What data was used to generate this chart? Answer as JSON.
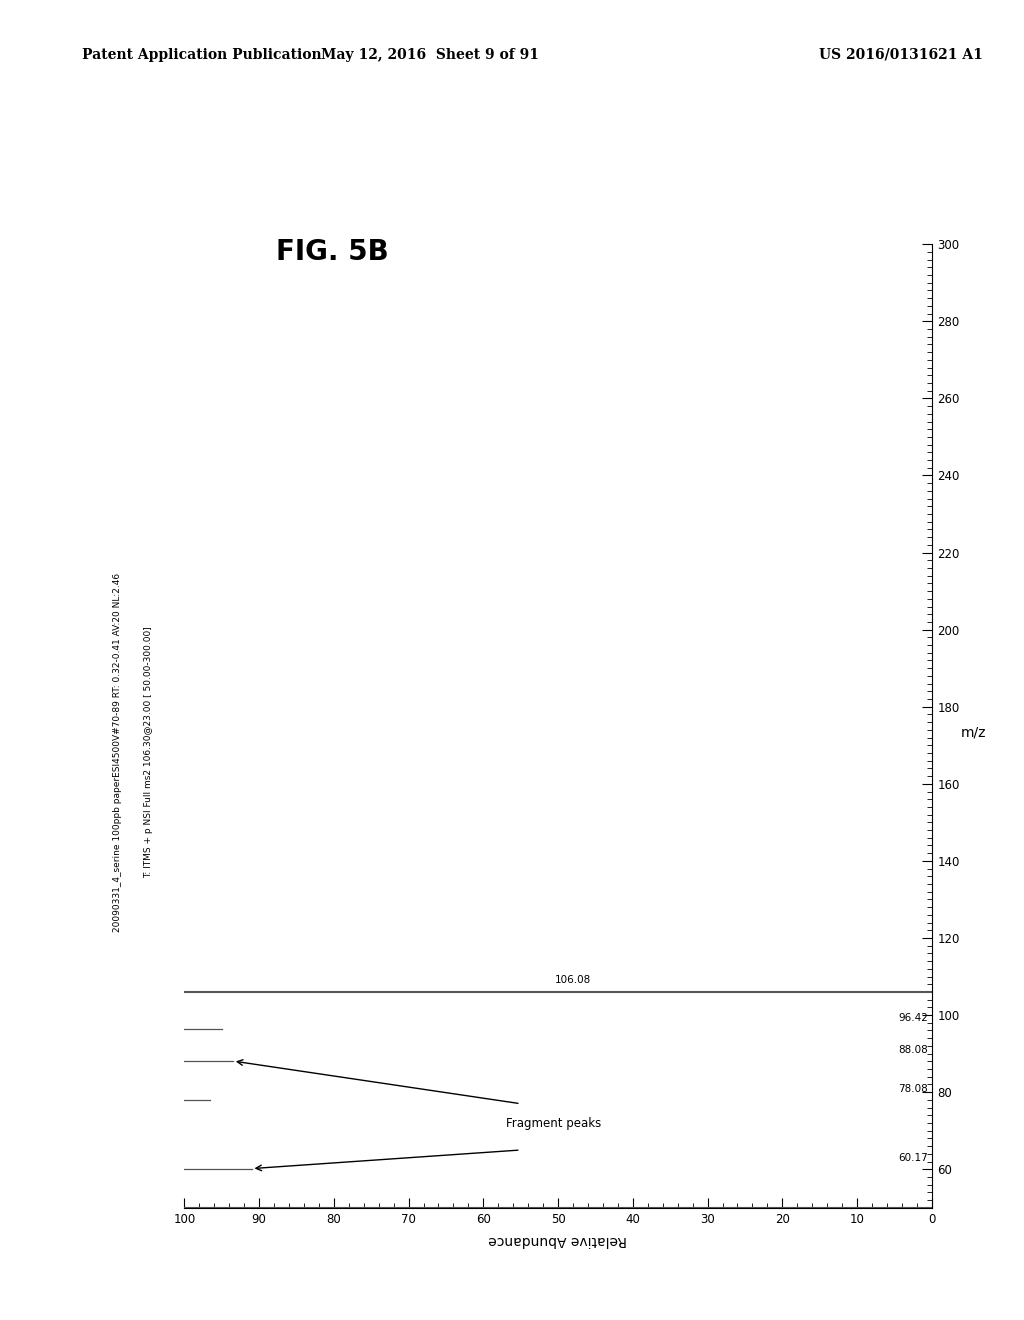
{
  "header_left": "Patent Application Publication",
  "header_mid": "May 12, 2016  Sheet 9 of 91",
  "header_right": "US 2016/0131621 A1",
  "figure_label": "FIG. 5B",
  "title_line1": "20090331_4_serine 100ppb paperESI4500V#70-89 RT: 0.32-0.41 AV:20 NL:2.46",
  "title_line2": "T: ITMS + p NSI Full ms2 106.30@23.00 [ 50.00-300.00]",
  "xlabel_rotated": "Relative Abundance",
  "ylabel_rotated": "m/z",
  "x_min": 50,
  "x_max": 300,
  "y_min": 0,
  "y_max": 100,
  "x_ticks": [
    60,
    80,
    100,
    120,
    140,
    160,
    180,
    200,
    220,
    240,
    260,
    280,
    300
  ],
  "y_ticks": [
    0,
    10,
    20,
    30,
    40,
    50,
    60,
    70,
    80,
    90,
    100
  ],
  "peaks": [
    {
      "mz": 106.08,
      "abundance": 100.0,
      "label": "106.08"
    },
    {
      "mz": 96.42,
      "abundance": 5.0,
      "label": "96.42"
    },
    {
      "mz": 88.08,
      "abundance": 6.5,
      "label": "88.08"
    },
    {
      "mz": 78.08,
      "abundance": 3.5,
      "label": "78.08"
    },
    {
      "mz": 60.17,
      "abundance": 9.0,
      "label": "60.17"
    }
  ],
  "annotation_text": "Fragment peaks",
  "background_color": "#ffffff",
  "text_color": "#000000",
  "peak_color": "#555555"
}
